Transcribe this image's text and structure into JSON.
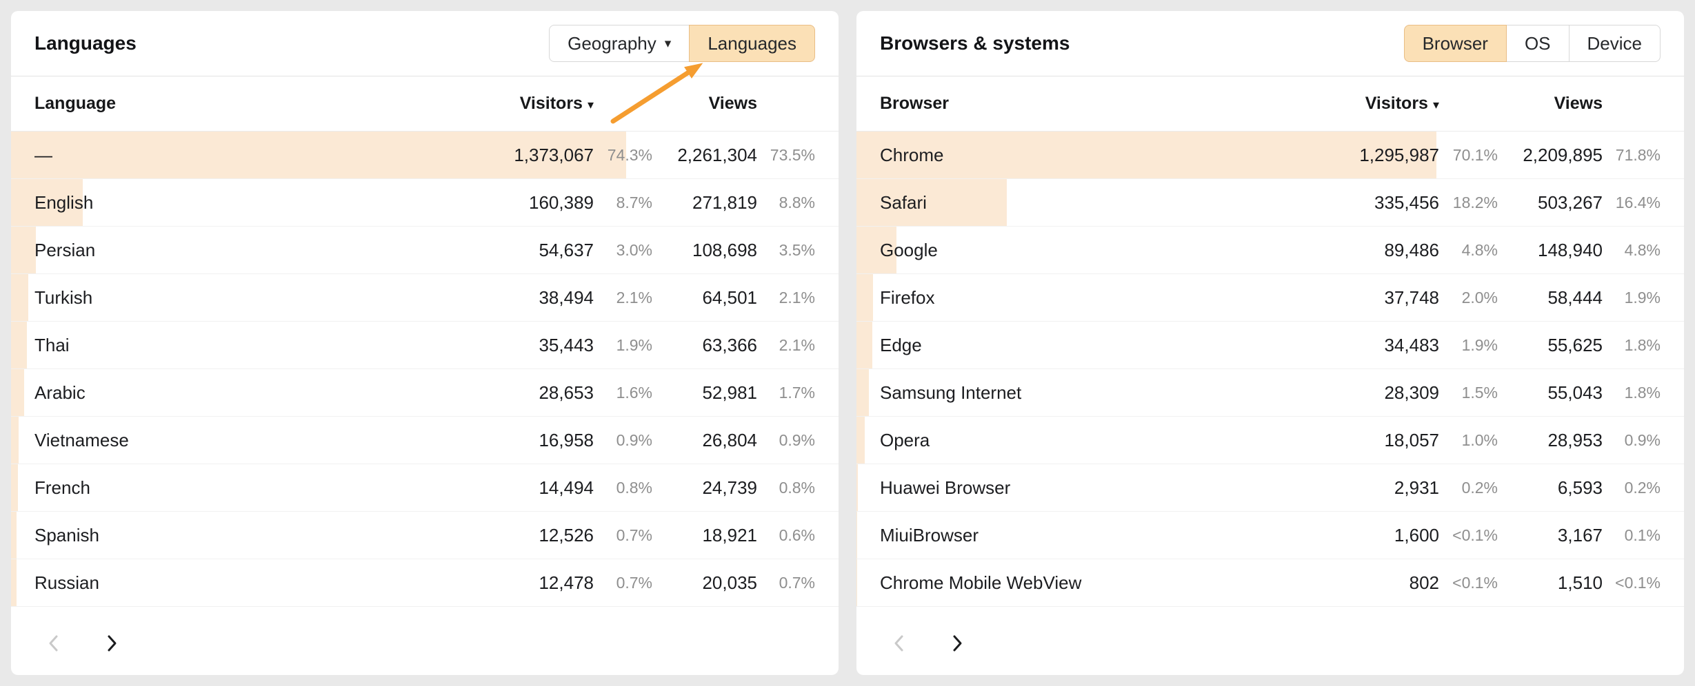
{
  "colors": {
    "accent_bar": "#fbe9d5",
    "selected_button_bg": "#fbe0b6",
    "selected_button_border": "#e9bd85",
    "arrow": "#f59d30",
    "page_bg": "#e9e9e9"
  },
  "icons": {
    "caret_down": "▾",
    "sort_caret": "▾"
  },
  "left_panel": {
    "title": "Languages",
    "buttons": {
      "geography": "Geography",
      "languages": "Languages"
    },
    "columns": {
      "name": "Language",
      "visitors": "Visitors",
      "views": "Views"
    },
    "rows": [
      {
        "name": "—",
        "visitors": "1,373,067",
        "visitors_pct": "74.3%",
        "views": "2,261,304",
        "views_pct": "73.5%",
        "bar": 74.3
      },
      {
        "name": "English",
        "visitors": "160,389",
        "visitors_pct": "8.7%",
        "views": "271,819",
        "views_pct": "8.8%",
        "bar": 8.7
      },
      {
        "name": "Persian",
        "visitors": "54,637",
        "visitors_pct": "3.0%",
        "views": "108,698",
        "views_pct": "3.5%",
        "bar": 3.0
      },
      {
        "name": "Turkish",
        "visitors": "38,494",
        "visitors_pct": "2.1%",
        "views": "64,501",
        "views_pct": "2.1%",
        "bar": 2.1
      },
      {
        "name": "Thai",
        "visitors": "35,443",
        "visitors_pct": "1.9%",
        "views": "63,366",
        "views_pct": "2.1%",
        "bar": 1.9
      },
      {
        "name": "Arabic",
        "visitors": "28,653",
        "visitors_pct": "1.6%",
        "views": "52,981",
        "views_pct": "1.7%",
        "bar": 1.6
      },
      {
        "name": "Vietnamese",
        "visitors": "16,958",
        "visitors_pct": "0.9%",
        "views": "26,804",
        "views_pct": "0.9%",
        "bar": 0.9
      },
      {
        "name": "French",
        "visitors": "14,494",
        "visitors_pct": "0.8%",
        "views": "24,739",
        "views_pct": "0.8%",
        "bar": 0.8
      },
      {
        "name": "Spanish",
        "visitors": "12,526",
        "visitors_pct": "0.7%",
        "views": "18,921",
        "views_pct": "0.6%",
        "bar": 0.7
      },
      {
        "name": "Russian",
        "visitors": "12,478",
        "visitors_pct": "0.7%",
        "views": "20,035",
        "views_pct": "0.7%",
        "bar": 0.7
      }
    ]
  },
  "right_panel": {
    "title": "Browsers & systems",
    "buttons": {
      "browser": "Browser",
      "os": "OS",
      "device": "Device"
    },
    "columns": {
      "name": "Browser",
      "visitors": "Visitors",
      "views": "Views"
    },
    "rows": [
      {
        "name": "Chrome",
        "visitors": "1,295,987",
        "visitors_pct": "70.1%",
        "views": "2,209,895",
        "views_pct": "71.8%",
        "bar": 70.1
      },
      {
        "name": "Safari",
        "visitors": "335,456",
        "visitors_pct": "18.2%",
        "views": "503,267",
        "views_pct": "16.4%",
        "bar": 18.2
      },
      {
        "name": "Google",
        "visitors": "89,486",
        "visitors_pct": "4.8%",
        "views": "148,940",
        "views_pct": "4.8%",
        "bar": 4.8
      },
      {
        "name": "Firefox",
        "visitors": "37,748",
        "visitors_pct": "2.0%",
        "views": "58,444",
        "views_pct": "1.9%",
        "bar": 2.0
      },
      {
        "name": "Edge",
        "visitors": "34,483",
        "visitors_pct": "1.9%",
        "views": "55,625",
        "views_pct": "1.8%",
        "bar": 1.9
      },
      {
        "name": "Samsung Internet",
        "visitors": "28,309",
        "visitors_pct": "1.5%",
        "views": "55,043",
        "views_pct": "1.8%",
        "bar": 1.5
      },
      {
        "name": "Opera",
        "visitors": "18,057",
        "visitors_pct": "1.0%",
        "views": "28,953",
        "views_pct": "0.9%",
        "bar": 1.0
      },
      {
        "name": "Huawei Browser",
        "visitors": "2,931",
        "visitors_pct": "0.2%",
        "views": "6,593",
        "views_pct": "0.2%",
        "bar": 0.2
      },
      {
        "name": "MiuiBrowser",
        "visitors": "1,600",
        "visitors_pct": "<0.1%",
        "views": "3,167",
        "views_pct": "0.1%",
        "bar": 0.1
      },
      {
        "name": "Chrome Mobile WebView",
        "visitors": "802",
        "visitors_pct": "<0.1%",
        "views": "1,510",
        "views_pct": "<0.1%",
        "bar": 0.05
      }
    ]
  }
}
